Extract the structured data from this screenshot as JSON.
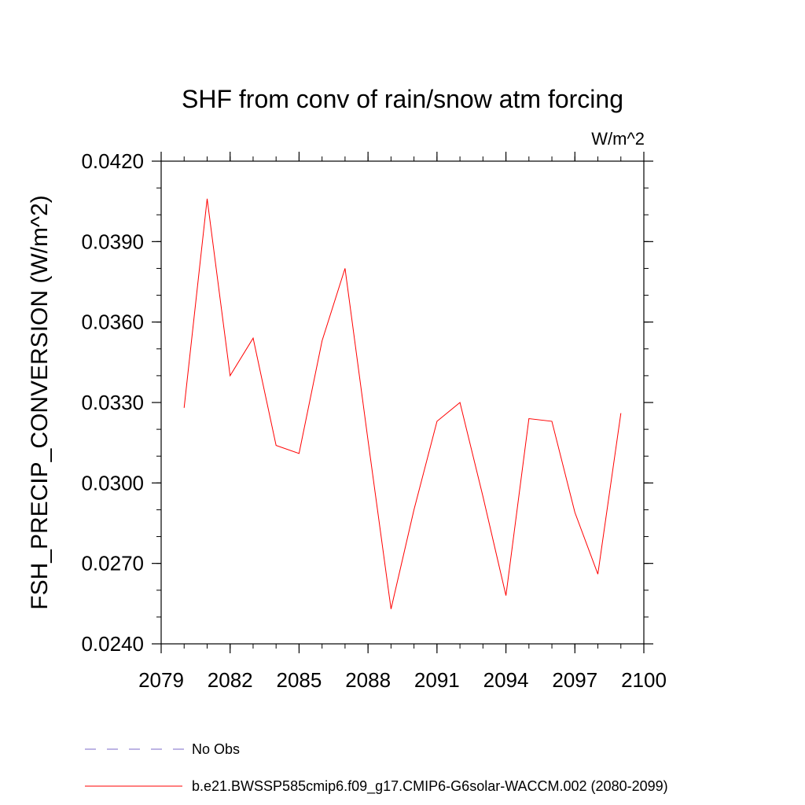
{
  "chart_data": {
    "type": "line",
    "title": "SHF from conv of rain/snow atm forcing",
    "units_label": "W/m^2",
    "ylabel": "FSH_PRECIP_CONVERSION  (W/m^2)",
    "xlabel": "",
    "xlim": [
      2079,
      2100
    ],
    "ylim": [
      0.024,
      0.042
    ],
    "x_ticks": [
      "2079",
      "2082",
      "2085",
      "2088",
      "2091",
      "2094",
      "2097",
      "2100"
    ],
    "y_ticks": [
      "0.0240",
      "0.0270",
      "0.0300",
      "0.0330",
      "0.0360",
      "0.0390",
      "0.0420"
    ],
    "grid": false,
    "legend_placement": "bottom",
    "series": [
      {
        "name": "b.e21.BWSSP585cmip6.f09_g17.CMIP6-G6solar-WACCM.002 (2080-2099)",
        "color": "#ff0000",
        "x": [
          2080,
          2081,
          2082,
          2083,
          2084,
          2085,
          2086,
          2087,
          2088,
          2089,
          2090,
          2091,
          2092,
          2093,
          2094,
          2095,
          2096,
          2097,
          2098,
          2099
        ],
        "values": [
          0.0328,
          0.0406,
          0.034,
          0.0354,
          0.0314,
          0.0311,
          0.0353,
          0.038,
          0.0316,
          0.0253,
          0.029,
          0.0323,
          0.033,
          0.0295,
          0.0258,
          0.0324,
          0.0323,
          0.0289,
          0.0266,
          0.0326
        ]
      }
    ],
    "legend": [
      {
        "label": "No Obs",
        "color": "#7b68c8",
        "style": "dashed"
      },
      {
        "label": "b.e21.BWSSP585cmip6.f09_g17.CMIP6-G6solar-WACCM.002 (2080-2099)",
        "color": "#ff0000",
        "style": "solid"
      }
    ]
  }
}
